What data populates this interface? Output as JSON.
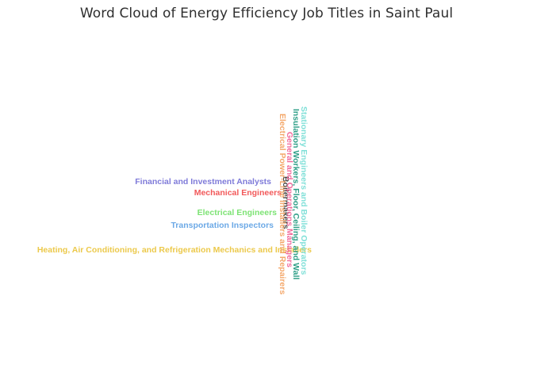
{
  "chart_data": {
    "type": "word_cloud",
    "title": "Word Cloud of Energy Efficiency Job Titles in Saint Paul",
    "words": [
      {
        "text": "Heating, Air Conditioning, and Refrigeration Mechanics and Installers",
        "color": "#ecc94b",
        "orientation": "horizontal"
      },
      {
        "text": "Transportation Inspectors",
        "color": "#6ca9e6",
        "orientation": "horizontal"
      },
      {
        "text": "Electrical Engineers",
        "color": "#7de374",
        "orientation": "horizontal"
      },
      {
        "text": "Mechanical Engineers",
        "color": "#f2595a",
        "orientation": "horizontal"
      },
      {
        "text": "Financial and Investment Analysts",
        "color": "#7f7bd9",
        "orientation": "horizontal"
      },
      {
        "text": "Boilermakers",
        "color": "#4a4a4a",
        "orientation": "vertical"
      },
      {
        "text": "Electrical Power-Line Installers and Repairers",
        "color": "#f4a86b",
        "orientation": "vertical"
      },
      {
        "text": "General and Operations Managers",
        "color": "#f26b9c",
        "orientation": "vertical"
      },
      {
        "text": "Insulation Workers, Floor, Ceiling, and Wall",
        "color": "#2c9e86",
        "orientation": "vertical"
      },
      {
        "text": "Stationary Engineers and Boiler Operators",
        "color": "#80e0d8",
        "orientation": "vertical"
      }
    ]
  }
}
